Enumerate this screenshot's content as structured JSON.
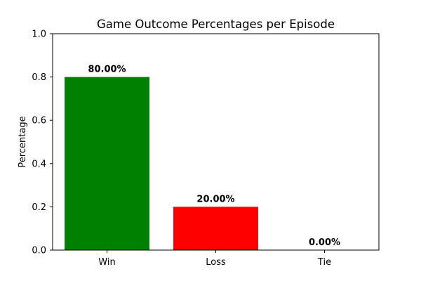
{
  "chart_data": {
    "type": "bar",
    "title": "Game Outcome Percentages per Episode",
    "xlabel": "",
    "ylabel": "Percentage",
    "categories": [
      "Win",
      "Loss",
      "Tie"
    ],
    "values": [
      0.8,
      0.2,
      0.0
    ],
    "data_labels": [
      "80.00%",
      "20.00%",
      "0.00%"
    ],
    "colors": [
      "#008000",
      "#ff0000",
      "#0000ff"
    ],
    "ylim": [
      0,
      1.0
    ],
    "yticks": [
      0.0,
      0.2,
      0.4,
      0.6,
      0.8,
      1.0
    ],
    "ytick_labels": [
      "0.0",
      "0.2",
      "0.4",
      "0.6",
      "0.8",
      "1.0"
    ],
    "grid": false,
    "legend": false
  }
}
